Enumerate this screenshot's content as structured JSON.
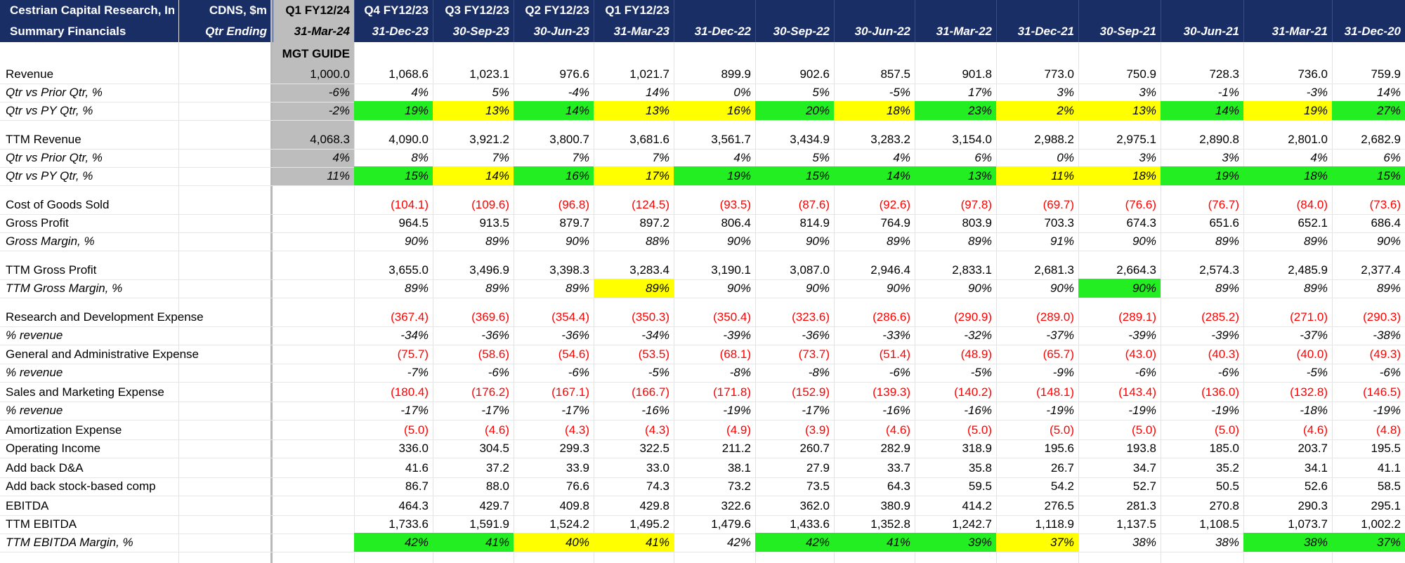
{
  "header": {
    "company": "Cestrian Capital Research, Inc",
    "units": "CDNS, $m",
    "subtitle": "Summary Financials",
    "qtr_ending": "Qtr Ending",
    "guide_label": "MGT GUIDE"
  },
  "columns": [
    {
      "fiscal": "Q1 FY12/24",
      "date": "31-Mar-24"
    },
    {
      "fiscal": "Q4 FY12/23",
      "date": "31-Dec-23"
    },
    {
      "fiscal": "Q3 FY12/23",
      "date": "30-Sep-23"
    },
    {
      "fiscal": "Q2 FY12/23",
      "date": "30-Jun-23"
    },
    {
      "fiscal": "Q1 FY12/23",
      "date": "31-Mar-23"
    },
    {
      "fiscal": "",
      "date": "31-Dec-22"
    },
    {
      "fiscal": "",
      "date": "30-Sep-22"
    },
    {
      "fiscal": "",
      "date": "30-Jun-22"
    },
    {
      "fiscal": "",
      "date": "31-Mar-22"
    },
    {
      "fiscal": "",
      "date": "31-Dec-21"
    },
    {
      "fiscal": "",
      "date": "30-Sep-21"
    },
    {
      "fiscal": "",
      "date": "30-Jun-21"
    },
    {
      "fiscal": "",
      "date": "31-Mar-21"
    },
    {
      "fiscal": "",
      "date": "31-Dec-20"
    }
  ],
  "colors": {
    "header_bg": "#1a2e66",
    "guide_bg": "#bdbdbd",
    "green": "#22ee22",
    "yellow": "#ffff00",
    "negative": "#ff0000"
  },
  "rows": [
    {
      "label": "Revenue",
      "italic": false,
      "values": [
        "1,000.0",
        "1,068.6",
        "1,023.1",
        "976.6",
        "1,021.7",
        "899.9",
        "902.6",
        "857.5",
        "901.8",
        "773.0",
        "750.9",
        "728.3",
        "736.0",
        "759.9"
      ],
      "highlights": []
    },
    {
      "label": "Qtr vs Prior Qtr, %",
      "italic": true,
      "values": [
        "-6%",
        "4%",
        "5%",
        "-4%",
        "14%",
        "0%",
        "5%",
        "-5%",
        "17%",
        "3%",
        "3%",
        "-1%",
        "-3%",
        "14%"
      ],
      "highlights": []
    },
    {
      "label": "Qtr vs PY Qtr, %",
      "italic": true,
      "values": [
        "-2%",
        "19%",
        "13%",
        "14%",
        "13%",
        "16%",
        "20%",
        "18%",
        "23%",
        "2%",
        "13%",
        "14%",
        "19%",
        "27%"
      ],
      "highlights": [
        "",
        "g",
        "y",
        "g",
        "y",
        "y",
        "g",
        "y",
        "g",
        "y",
        "y",
        "g",
        "y",
        "g"
      ]
    },
    {
      "label": "TTM Revenue",
      "italic": false,
      "values": [
        "4,068.3",
        "4,090.0",
        "3,921.2",
        "3,800.7",
        "3,681.6",
        "3,561.7",
        "3,434.9",
        "3,283.2",
        "3,154.0",
        "2,988.2",
        "2,975.1",
        "2,890.8",
        "2,801.0",
        "2,682.9"
      ],
      "highlights": []
    },
    {
      "label": "Qtr vs Prior Qtr, %",
      "italic": true,
      "values": [
        "4%",
        "8%",
        "7%",
        "7%",
        "7%",
        "4%",
        "5%",
        "4%",
        "6%",
        "0%",
        "3%",
        "3%",
        "4%",
        "6%"
      ],
      "highlights": []
    },
    {
      "label": "Qtr vs PY Qtr, %",
      "italic": true,
      "values": [
        "11%",
        "15%",
        "14%",
        "16%",
        "17%",
        "19%",
        "15%",
        "14%",
        "13%",
        "11%",
        "18%",
        "19%",
        "18%",
        "15%"
      ],
      "highlights": [
        "",
        "g",
        "y",
        "g",
        "y",
        "g",
        "g",
        "g",
        "g",
        "y",
        "y",
        "g",
        "g",
        "g"
      ]
    },
    {
      "label": "Cost of Goods Sold",
      "italic": false,
      "values": [
        "",
        "(104.1)",
        "(109.6)",
        "(96.8)",
        "(124.5)",
        "(93.5)",
        "(87.6)",
        "(92.6)",
        "(97.8)",
        "(69.7)",
        "(76.6)",
        "(76.7)",
        "(84.0)",
        "(73.6)"
      ],
      "highlights": []
    },
    {
      "label": "Gross Profit",
      "italic": false,
      "values": [
        "",
        "964.5",
        "913.5",
        "879.7",
        "897.2",
        "806.4",
        "814.9",
        "764.9",
        "803.9",
        "703.3",
        "674.3",
        "651.6",
        "652.1",
        "686.4"
      ],
      "highlights": []
    },
    {
      "label": "Gross Margin, %",
      "italic": true,
      "values": [
        "",
        "90%",
        "89%",
        "90%",
        "88%",
        "90%",
        "90%",
        "89%",
        "89%",
        "91%",
        "90%",
        "89%",
        "89%",
        "90%"
      ],
      "highlights": []
    },
    {
      "label": "TTM Gross Profit",
      "italic": false,
      "values": [
        "",
        "3,655.0",
        "3,496.9",
        "3,398.3",
        "3,283.4",
        "3,190.1",
        "3,087.0",
        "2,946.4",
        "2,833.1",
        "2,681.3",
        "2,664.3",
        "2,574.3",
        "2,485.9",
        "2,377.4"
      ],
      "highlights": []
    },
    {
      "label": "TTM Gross Margin, %",
      "italic": true,
      "values": [
        "",
        "89%",
        "89%",
        "89%",
        "89%",
        "90%",
        "90%",
        "90%",
        "90%",
        "90%",
        "90%",
        "89%",
        "89%",
        "89%"
      ],
      "highlights": [
        "",
        "",
        "",
        "",
        "y",
        "",
        "",
        "",
        "",
        "",
        "g",
        "",
        "",
        ""
      ]
    },
    {
      "label": "Research and Development Expense",
      "italic": false,
      "values": [
        "",
        "(367.4)",
        "(369.6)",
        "(354.4)",
        "(350.3)",
        "(350.4)",
        "(323.6)",
        "(286.6)",
        "(290.9)",
        "(289.0)",
        "(289.1)",
        "(285.2)",
        "(271.0)",
        "(290.3)"
      ],
      "highlights": []
    },
    {
      "label": "% revenue",
      "italic": true,
      "values": [
        "",
        "-34%",
        "-36%",
        "-36%",
        "-34%",
        "-39%",
        "-36%",
        "-33%",
        "-32%",
        "-37%",
        "-39%",
        "-39%",
        "-37%",
        "-38%"
      ],
      "highlights": []
    },
    {
      "label": "General and Administrative Expense",
      "italic": false,
      "values": [
        "",
        "(75.7)",
        "(58.6)",
        "(54.6)",
        "(53.5)",
        "(68.1)",
        "(73.7)",
        "(51.4)",
        "(48.9)",
        "(65.7)",
        "(43.0)",
        "(40.3)",
        "(40.0)",
        "(49.3)"
      ],
      "highlights": []
    },
    {
      "label": "% revenue",
      "italic": true,
      "values": [
        "",
        "-7%",
        "-6%",
        "-6%",
        "-5%",
        "-8%",
        "-8%",
        "-6%",
        "-5%",
        "-9%",
        "-6%",
        "-6%",
        "-5%",
        "-6%"
      ],
      "highlights": []
    },
    {
      "label": "Sales and Marketing Expense",
      "italic": false,
      "values": [
        "",
        "(180.4)",
        "(176.2)",
        "(167.1)",
        "(166.7)",
        "(171.8)",
        "(152.9)",
        "(139.3)",
        "(140.2)",
        "(148.1)",
        "(143.4)",
        "(136.0)",
        "(132.8)",
        "(146.5)"
      ],
      "highlights": []
    },
    {
      "label": "% revenue",
      "italic": true,
      "values": [
        "",
        "-17%",
        "-17%",
        "-17%",
        "-16%",
        "-19%",
        "-17%",
        "-16%",
        "-16%",
        "-19%",
        "-19%",
        "-19%",
        "-18%",
        "-19%"
      ],
      "highlights": []
    },
    {
      "label": "Amortization Expense",
      "italic": false,
      "values": [
        "",
        "(5.0)",
        "(4.6)",
        "(4.3)",
        "(4.3)",
        "(4.9)",
        "(3.9)",
        "(4.6)",
        "(5.0)",
        "(5.0)",
        "(5.0)",
        "(5.0)",
        "(4.6)",
        "(4.8)"
      ],
      "highlights": []
    },
    {
      "label": "Operating Income",
      "italic": false,
      "values": [
        "",
        "336.0",
        "304.5",
        "299.3",
        "322.5",
        "211.2",
        "260.7",
        "282.9",
        "318.9",
        "195.6",
        "193.8",
        "185.0",
        "203.7",
        "195.5"
      ],
      "highlights": []
    },
    {
      "label": "Add back D&A",
      "italic": false,
      "values": [
        "",
        "41.6",
        "37.2",
        "33.9",
        "33.0",
        "38.1",
        "27.9",
        "33.7",
        "35.8",
        "26.7",
        "34.7",
        "35.2",
        "34.1",
        "41.1"
      ],
      "highlights": []
    },
    {
      "label": "Add back stock-based comp",
      "italic": false,
      "values": [
        "",
        "86.7",
        "88.0",
        "76.6",
        "74.3",
        "73.2",
        "73.5",
        "64.3",
        "59.5",
        "54.2",
        "52.7",
        "50.5",
        "52.6",
        "58.5"
      ],
      "highlights": []
    },
    {
      "label": "EBITDA",
      "italic": false,
      "values": [
        "",
        "464.3",
        "429.7",
        "409.8",
        "429.8",
        "322.6",
        "362.0",
        "380.9",
        "414.2",
        "276.5",
        "281.3",
        "270.8",
        "290.3",
        "295.1"
      ],
      "highlights": []
    },
    {
      "label": "TTM EBITDA",
      "italic": false,
      "values": [
        "",
        "1,733.6",
        "1,591.9",
        "1,524.2",
        "1,495.2",
        "1,479.6",
        "1,433.6",
        "1,352.8",
        "1,242.7",
        "1,118.9",
        "1,137.5",
        "1,108.5",
        "1,073.7",
        "1,002.2"
      ],
      "highlights": []
    },
    {
      "label": "TTM EBITDA Margin, %",
      "italic": true,
      "values": [
        "",
        "42%",
        "41%",
        "40%",
        "41%",
        "42%",
        "42%",
        "41%",
        "39%",
        "37%",
        "38%",
        "38%",
        "38%",
        "37%"
      ],
      "highlights": [
        "",
        "g",
        "g",
        "y",
        "y",
        "",
        "g",
        "g",
        "g",
        "y",
        "",
        "",
        "g",
        "g"
      ]
    }
  ]
}
